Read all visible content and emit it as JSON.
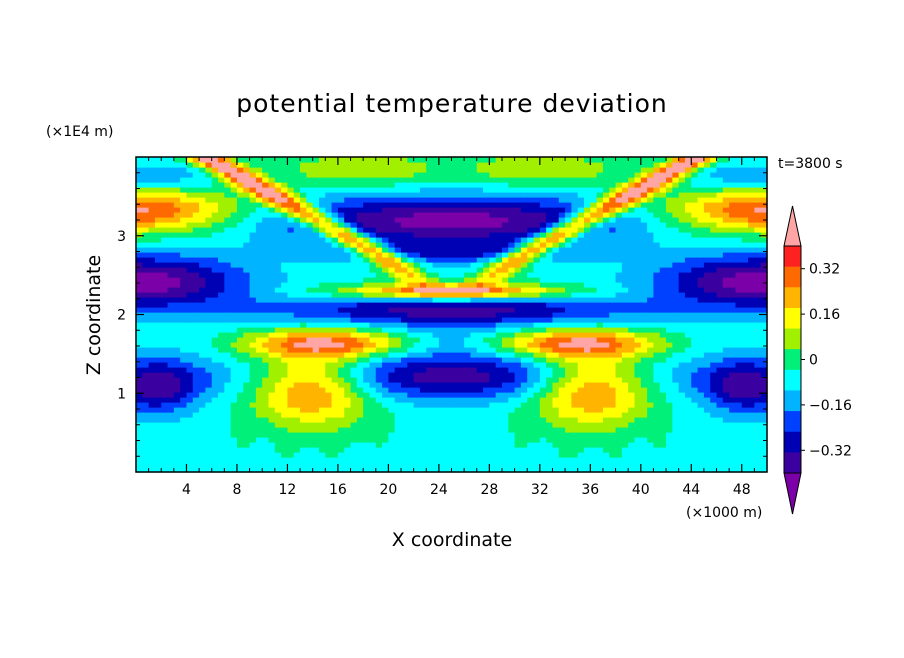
{
  "chart_data": {
    "type": "heatmap",
    "title": "potential temperature deviation",
    "xlabel": "X coordinate",
    "ylabel": "Z coordinate",
    "x_unit": "(×1000 m)",
    "y_unit": "(×1E4 m)",
    "time_label": "t=3800 s",
    "xlim": [
      0,
      50
    ],
    "ylim": [
      0,
      4
    ],
    "x_ticks": [
      4,
      8,
      12,
      16,
      20,
      24,
      28,
      32,
      36,
      40,
      44,
      48
    ],
    "y_ticks": [
      1,
      2,
      3
    ],
    "colorbar": {
      "labels": [
        "0.32",
        "0.16",
        "0",
        "−0.16",
        "−0.32"
      ],
      "label_values": [
        0.32,
        0.16,
        0,
        -0.16,
        -0.32
      ],
      "levels": [
        -0.4,
        -0.32,
        -0.24,
        -0.16,
        -0.08,
        0,
        0.08,
        0.16,
        0.24,
        0.32,
        0.4
      ],
      "colors": [
        "#7b00a8",
        "#3a00a0",
        "#0000b4",
        "#0040ff",
        "#00b4ff",
        "#00ffff",
        "#00f07a",
        "#a0f000",
        "#ffff00",
        "#ffb400",
        "#ff6a00",
        "#ff2020",
        "#ffa5a5"
      ],
      "extend": "both"
    }
  }
}
